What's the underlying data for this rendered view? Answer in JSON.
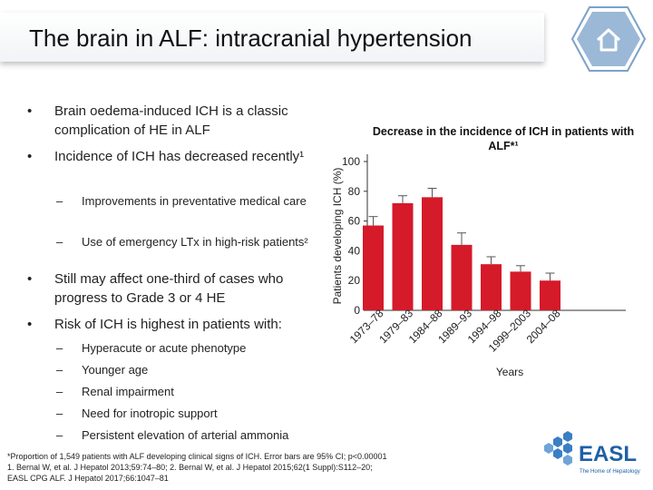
{
  "header": {
    "title": "The brain in ALF: intracranial hypertension",
    "home_icon": "home-icon"
  },
  "bullets": [
    {
      "level": 1,
      "text": "Brain oedema-induced ICH is a classic complication of HE in ALF"
    },
    {
      "level": 1,
      "text": "Incidence of ICH has decreased recently¹"
    },
    {
      "level": 2,
      "text": "Improvements in preventative medical care"
    },
    {
      "level": 2,
      "text": "Use of emergency LTx in high-risk patients²"
    },
    {
      "level": 1,
      "text": "Still may affect one-third of cases who progress to Grade 3 or 4 HE"
    },
    {
      "level": 1,
      "text": "Risk of ICH is highest in patients with:"
    },
    {
      "level": 2,
      "text": "Hyperacute or acute phenotype"
    },
    {
      "level": 2,
      "text": "Younger age"
    },
    {
      "level": 2,
      "text": "Renal impairment"
    },
    {
      "level": 2,
      "text": "Need for inotropic support"
    },
    {
      "level": 2,
      "text": "Persistent elevation of arterial ammonia"
    }
  ],
  "bullet_glyph": "•",
  "dash_glyph": "–",
  "chart_data": {
    "type": "bar",
    "title": "Decrease in the incidence of ICH in patients with ALF*¹",
    "xlabel": "Years",
    "ylabel": "Patients developing ICH (%)",
    "categories": [
      "1973–78",
      "1979–83",
      "1984–88",
      "1989–93",
      "1994–98",
      "1999–2003",
      "2004–08"
    ],
    "values": [
      57,
      72,
      76,
      44,
      31,
      26,
      20
    ],
    "error_upper": [
      63,
      77,
      82,
      52,
      36,
      30,
      25
    ],
    "ylim": [
      0,
      100
    ],
    "yticks": [
      0,
      20,
      40,
      60,
      80,
      100
    ],
    "bar_color": "#d51a2a",
    "grid": false
  },
  "footnote": {
    "lines": [
      "*Proportion of 1,549 patients with ALF developing clinical signs of ICH. Error bars are 95% CI; p<0.00001",
      "1. Bernal W, et al. J Hepatol 2013;59:74–80; 2. Bernal W, et al. J Hepatol 2015;62(1 Suppl):S112–20;",
      "EASL CPG ALF. J Hepatol 2017;66:1047–81"
    ]
  },
  "logo": {
    "name": "EASL",
    "tagline": "The Home of Hepatology",
    "color": "#1f5fa6"
  }
}
